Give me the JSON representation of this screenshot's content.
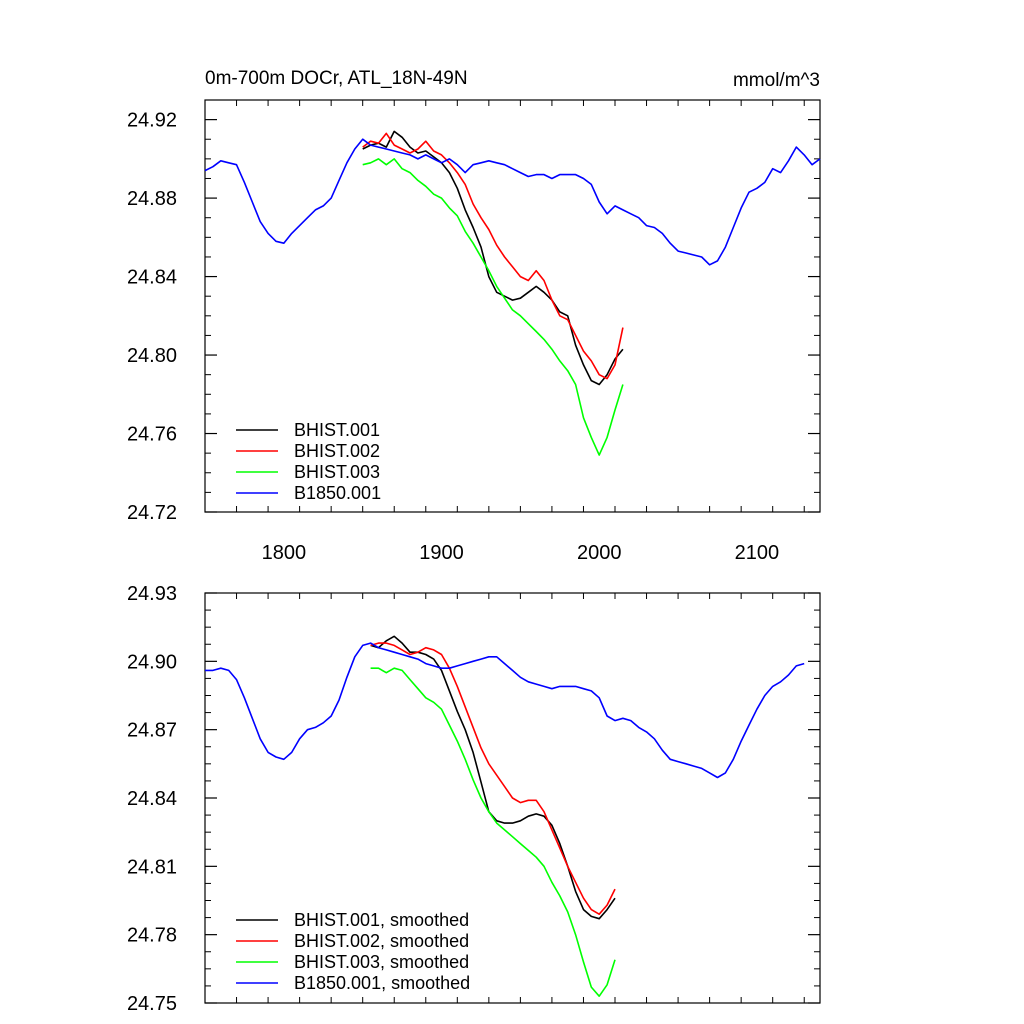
{
  "chart_data": [
    {
      "type": "line",
      "title": "0m-700m DOCr, ATL_18N-49N",
      "units": "mmol/m^3",
      "xlim": [
        1750,
        2140
      ],
      "ylim": [
        24.72,
        24.93
      ],
      "x_ticks": [
        1800,
        1900,
        2000,
        2100
      ],
      "x_tick_labels": [
        "1800",
        "1900",
        "2000",
        "2100"
      ],
      "y_ticks": [
        24.72,
        24.76,
        24.8,
        24.84,
        24.88,
        24.92
      ],
      "y_tick_labels": [
        "24.72",
        "24.76",
        "24.80",
        "24.84",
        "24.88",
        "24.92"
      ],
      "legend_position": "bottom-left",
      "series": [
        {
          "name": "BHIST.001",
          "color": "#000000",
          "x": [
            1850,
            1855,
            1860,
            1865,
            1870,
            1875,
            1880,
            1885,
            1890,
            1895,
            1900,
            1905,
            1910,
            1915,
            1920,
            1925,
            1930,
            1935,
            1940,
            1945,
            1950,
            1955,
            1960,
            1965,
            1970,
            1975,
            1980,
            1985,
            1990,
            1995,
            2000,
            2005,
            2010,
            2015
          ],
          "y": [
            24.905,
            24.907,
            24.908,
            24.906,
            24.914,
            24.911,
            24.906,
            24.903,
            24.904,
            24.901,
            24.898,
            24.893,
            24.885,
            24.874,
            24.865,
            24.855,
            24.84,
            24.832,
            24.83,
            24.828,
            24.829,
            24.832,
            24.835,
            24.832,
            24.828,
            24.822,
            24.82,
            24.805,
            24.795,
            24.787,
            24.785,
            24.79,
            24.798,
            24.803
          ]
        },
        {
          "name": "BHIST.002",
          "color": "#ff0000",
          "x": [
            1850,
            1855,
            1860,
            1865,
            1870,
            1875,
            1880,
            1885,
            1890,
            1895,
            1900,
            1905,
            1910,
            1915,
            1920,
            1925,
            1930,
            1935,
            1940,
            1945,
            1950,
            1955,
            1960,
            1965,
            1970,
            1975,
            1980,
            1985,
            1990,
            1995,
            2000,
            2005,
            2010,
            2015
          ],
          "y": [
            24.906,
            24.909,
            24.908,
            24.913,
            24.907,
            24.905,
            24.903,
            24.905,
            24.909,
            24.904,
            24.902,
            24.898,
            24.893,
            24.887,
            24.877,
            24.87,
            24.864,
            24.856,
            24.85,
            24.845,
            24.84,
            24.838,
            24.843,
            24.838,
            24.828,
            24.82,
            24.818,
            24.81,
            24.802,
            24.797,
            24.79,
            24.788,
            24.795,
            24.814
          ]
        },
        {
          "name": "BHIST.003",
          "color": "#00ff00",
          "x": [
            1850,
            1855,
            1860,
            1865,
            1870,
            1875,
            1880,
            1885,
            1890,
            1895,
            1900,
            1905,
            1910,
            1915,
            1920,
            1925,
            1930,
            1935,
            1940,
            1945,
            1950,
            1955,
            1960,
            1965,
            1970,
            1975,
            1980,
            1985,
            1990,
            1995,
            2000,
            2005,
            2010,
            2015
          ],
          "y": [
            24.897,
            24.898,
            24.9,
            24.897,
            24.9,
            24.895,
            24.893,
            24.889,
            24.886,
            24.882,
            24.88,
            24.875,
            24.871,
            24.863,
            24.857,
            24.85,
            24.843,
            24.835,
            24.829,
            24.823,
            24.82,
            24.816,
            24.812,
            24.808,
            24.803,
            24.797,
            24.792,
            24.785,
            24.768,
            24.758,
            24.749,
            24.758,
            24.772,
            24.785
          ]
        },
        {
          "name": "B1850.001",
          "color": "#0000ff",
          "x": [
            1750,
            1755,
            1760,
            1765,
            1770,
            1775,
            1780,
            1785,
            1790,
            1795,
            1800,
            1805,
            1810,
            1815,
            1820,
            1825,
            1830,
            1835,
            1840,
            1845,
            1850,
            1855,
            1860,
            1865,
            1870,
            1875,
            1880,
            1885,
            1890,
            1895,
            1900,
            1905,
            1910,
            1915,
            1920,
            1925,
            1930,
            1935,
            1940,
            1945,
            1950,
            1955,
            1960,
            1965,
            1970,
            1975,
            1980,
            1985,
            1990,
            1995,
            2000,
            2005,
            2010,
            2015,
            2020,
            2025,
            2030,
            2035,
            2040,
            2045,
            2050,
            2055,
            2060,
            2065,
            2070,
            2075,
            2080,
            2085,
            2090,
            2095,
            2100,
            2105,
            2110,
            2115,
            2120,
            2125,
            2130,
            2135,
            2140
          ],
          "y": [
            24.894,
            24.896,
            24.899,
            24.898,
            24.897,
            24.888,
            24.878,
            24.868,
            24.862,
            24.858,
            24.857,
            24.862,
            24.866,
            24.87,
            24.874,
            24.876,
            24.88,
            24.889,
            24.898,
            24.905,
            24.91,
            24.907,
            24.906,
            24.905,
            24.904,
            24.903,
            24.902,
            24.9,
            24.902,
            24.9,
            24.898,
            24.9,
            24.897,
            24.893,
            24.897,
            24.898,
            24.899,
            24.898,
            24.897,
            24.895,
            24.893,
            24.891,
            24.892,
            24.892,
            24.89,
            24.892,
            24.892,
            24.892,
            24.89,
            24.887,
            24.878,
            24.872,
            24.876,
            24.874,
            24.872,
            24.87,
            24.866,
            24.865,
            24.862,
            24.857,
            24.853,
            24.852,
            24.851,
            24.85,
            24.846,
            24.848,
            24.855,
            24.865,
            24.875,
            24.883,
            24.885,
            24.888,
            24.895,
            24.893,
            24.899,
            24.906,
            24.902,
            24.897,
            24.9
          ]
        }
      ]
    },
    {
      "type": "line",
      "title": "",
      "xlim": [
        1750,
        2140
      ],
      "ylim": [
        24.75,
        24.93
      ],
      "x_ticks": [
        1800,
        1900,
        2000,
        2100
      ],
      "x_tick_labels": [],
      "y_ticks": [
        24.75,
        24.78,
        24.81,
        24.84,
        24.87,
        24.9,
        24.93
      ],
      "y_tick_labels": [
        "24.75",
        "24.78",
        "24.81",
        "24.84",
        "24.87",
        "24.90",
        "24.93"
      ],
      "legend_position": "bottom-left",
      "series": [
        {
          "name": "BHIST.001, smoothed",
          "color": "#000000",
          "x": [
            1855,
            1860,
            1865,
            1870,
            1875,
            1880,
            1885,
            1890,
            1895,
            1900,
            1905,
            1910,
            1915,
            1920,
            1925,
            1930,
            1935,
            1940,
            1945,
            1950,
            1955,
            1960,
            1965,
            1970,
            1975,
            1980,
            1985,
            1990,
            1995,
            2000,
            2005,
            2010
          ],
          "y": [
            24.907,
            24.906,
            24.909,
            24.911,
            24.908,
            24.904,
            24.904,
            24.903,
            24.901,
            24.896,
            24.887,
            24.878,
            24.87,
            24.86,
            24.847,
            24.834,
            24.83,
            24.829,
            24.829,
            24.83,
            24.832,
            24.833,
            24.832,
            24.828,
            24.82,
            24.81,
            24.799,
            24.791,
            24.788,
            24.787,
            24.791,
            24.796
          ]
        },
        {
          "name": "BHIST.002, smoothed",
          "color": "#ff0000",
          "x": [
            1855,
            1860,
            1865,
            1870,
            1875,
            1880,
            1885,
            1890,
            1895,
            1900,
            1905,
            1910,
            1915,
            1920,
            1925,
            1930,
            1935,
            1940,
            1945,
            1950,
            1955,
            1960,
            1965,
            1970,
            1975,
            1980,
            1985,
            1990,
            1995,
            2000,
            2005,
            2010
          ],
          "y": [
            24.907,
            24.908,
            24.908,
            24.907,
            24.905,
            24.903,
            24.904,
            24.906,
            24.905,
            24.903,
            24.897,
            24.889,
            24.88,
            24.871,
            24.862,
            24.855,
            24.85,
            24.845,
            24.84,
            24.838,
            24.839,
            24.839,
            24.834,
            24.826,
            24.818,
            24.81,
            24.803,
            24.796,
            24.791,
            24.789,
            24.793,
            24.8
          ]
        },
        {
          "name": "BHIST.003, smoothed",
          "color": "#00ff00",
          "x": [
            1855,
            1860,
            1865,
            1870,
            1875,
            1880,
            1885,
            1890,
            1895,
            1900,
            1905,
            1910,
            1915,
            1920,
            1925,
            1930,
            1935,
            1940,
            1945,
            1950,
            1955,
            1960,
            1965,
            1970,
            1975,
            1980,
            1985,
            1990,
            1995,
            2000,
            2005,
            2010
          ],
          "y": [
            24.897,
            24.897,
            24.895,
            24.897,
            24.896,
            24.892,
            24.888,
            24.884,
            24.882,
            24.879,
            24.872,
            24.865,
            24.857,
            24.848,
            24.84,
            24.834,
            24.829,
            24.826,
            24.823,
            24.82,
            24.817,
            24.814,
            24.81,
            24.803,
            24.797,
            24.79,
            24.78,
            24.768,
            24.757,
            24.753,
            24.758,
            24.769
          ]
        },
        {
          "name": "B1850.001, smoothed",
          "color": "#0000ff",
          "x": [
            1750,
            1755,
            1760,
            1765,
            1770,
            1775,
            1780,
            1785,
            1790,
            1795,
            1800,
            1805,
            1810,
            1815,
            1820,
            1825,
            1830,
            1835,
            1840,
            1845,
            1850,
            1855,
            1860,
            1865,
            1870,
            1875,
            1880,
            1885,
            1890,
            1895,
            1900,
            1905,
            1910,
            1915,
            1920,
            1925,
            1930,
            1935,
            1940,
            1945,
            1950,
            1955,
            1960,
            1965,
            1970,
            1975,
            1980,
            1985,
            1990,
            1995,
            2000,
            2005,
            2010,
            2015,
            2020,
            2025,
            2030,
            2035,
            2040,
            2045,
            2050,
            2055,
            2060,
            2065,
            2070,
            2075,
            2080,
            2085,
            2090,
            2095,
            2100,
            2105,
            2110,
            2115,
            2120,
            2125,
            2130
          ],
          "y": [
            24.896,
            24.896,
            24.897,
            24.896,
            24.892,
            24.884,
            24.875,
            24.866,
            24.86,
            24.858,
            24.857,
            24.86,
            24.866,
            24.87,
            24.871,
            24.873,
            24.876,
            24.883,
            24.893,
            24.902,
            24.907,
            24.908,
            24.906,
            24.905,
            24.904,
            24.903,
            24.902,
            24.901,
            24.899,
            24.898,
            24.897,
            24.897,
            24.898,
            24.899,
            24.9,
            24.901,
            24.902,
            24.902,
            24.899,
            24.896,
            24.893,
            24.891,
            24.89,
            24.889,
            24.888,
            24.889,
            24.889,
            24.889,
            24.888,
            24.887,
            24.884,
            24.876,
            24.874,
            24.875,
            24.874,
            24.871,
            24.869,
            24.866,
            24.861,
            24.857,
            24.856,
            24.855,
            24.854,
            24.853,
            24.851,
            24.849,
            24.851,
            24.857,
            24.865,
            24.872,
            24.879,
            24.885,
            24.889,
            24.891,
            24.894,
            24.898,
            24.899
          ]
        }
      ]
    }
  ]
}
